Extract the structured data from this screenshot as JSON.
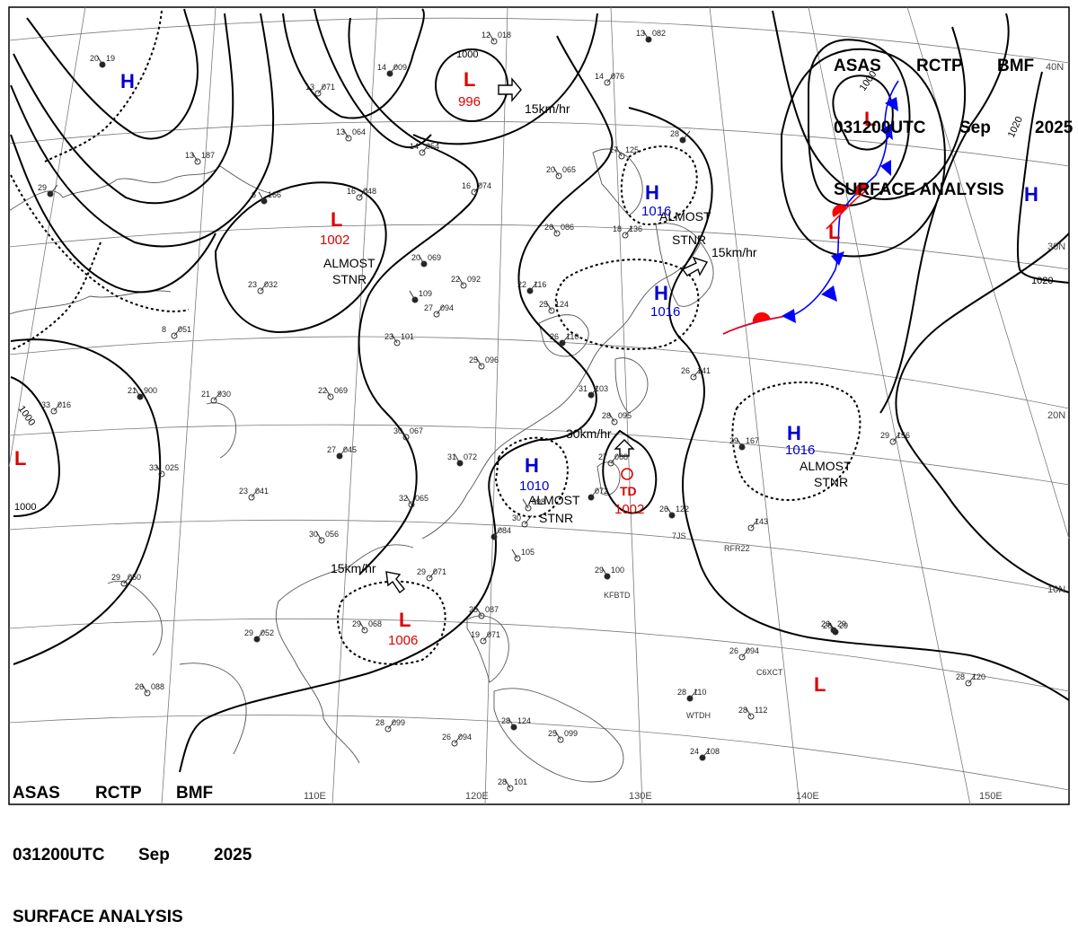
{
  "header": {
    "agency_line": [
      "ASAS",
      "RCTP",
      "BMF"
    ],
    "time_line": [
      "031200UTC",
      "Sep",
      "2025"
    ],
    "title": "SURFACE ANALYSIS"
  },
  "colors": {
    "high": "#0000cc",
    "low": "#dd0000",
    "isobar": "#000000",
    "graticule": "#7a7a7a",
    "coast": "#555555",
    "cold_front": "#0000ff",
    "warm_front": "#ff0000"
  },
  "lon_labels": [
    "110E",
    "120E",
    "130E",
    "140E",
    "150E"
  ],
  "lat_labels": [
    "40N",
    "30N",
    "20N",
    "10N"
  ],
  "pressure_systems": [
    {
      "type": "L",
      "value": "996"
    },
    {
      "type": "L",
      "value": "1002",
      "note_1": "ALMOST",
      "note_2": "STNR"
    },
    {
      "type": "H",
      "value": "1016",
      "note_1": "ALMOST",
      "note_2": "STNR"
    },
    {
      "type": "H",
      "value": "1016",
      "motion": "15km/hr"
    },
    {
      "type": "H",
      "value": "1016",
      "note_1": "ALMOST",
      "note_2": "STNR"
    },
    {
      "type": "H",
      "value": "1010",
      "note_1": "ALMOST",
      "note_2": "STNR"
    },
    {
      "type": "TD",
      "value": "1002",
      "motion": "30km/hr"
    },
    {
      "type": "L",
      "value": "1006",
      "motion": "15km/hr"
    },
    {
      "type": "L",
      "value": ""
    },
    {
      "type": "L",
      "value": ""
    },
    {
      "type": "L",
      "value": ""
    },
    {
      "type": "H",
      "value": ""
    },
    {
      "type": "H",
      "value": ""
    }
  ],
  "motion_labels": {
    "north_low": "15km/hr",
    "td": "30km/hr",
    "high_east": "15km/hr",
    "south_low": "15km/hr"
  },
  "isobar_labels": {
    "a": "1000",
    "b": "1000",
    "c": "1000",
    "d": "1000",
    "e": "1020",
    "f": "1020"
  },
  "stations": [
    {
      "t": "20",
      "p": "19"
    },
    {
      "t": "13",
      "p": "071"
    },
    {
      "t": "13",
      "p": "064"
    },
    {
      "t": "14",
      "p": "009"
    },
    {
      "t": "12",
      "p": "018"
    },
    {
      "t": "14",
      "p": "054"
    },
    {
      "t": "13",
      "p": "082"
    },
    {
      "t": "14",
      "p": "076"
    },
    {
      "t": "17",
      "p": "125"
    },
    {
      "t": "28",
      "p": ""
    },
    {
      "t": "20",
      "p": "065"
    },
    {
      "t": "16",
      "p": "074"
    },
    {
      "t": "6",
      "p": "166"
    },
    {
      "t": "16",
      "p": "048"
    },
    {
      "t": "13",
      "p": "187"
    },
    {
      "t": "29",
      "p": ""
    },
    {
      "t": "26",
      "p": "086"
    },
    {
      "t": "18",
      "p": "136"
    },
    {
      "t": "20",
      "p": "069"
    },
    {
      "t": "23",
      "p": "032"
    },
    {
      "t": "22",
      "p": "092"
    },
    {
      "t": "22",
      "p": "116"
    },
    {
      "t": "25",
      "p": "124"
    },
    {
      "t": "27",
      "p": "094"
    },
    {
      "t": "",
      "p": "109"
    },
    {
      "t": "8",
      "p": "051"
    },
    {
      "t": "23",
      "p": "101"
    },
    {
      "t": "26",
      "p": "110"
    },
    {
      "t": "25",
      "p": "096"
    },
    {
      "t": "33",
      "p": "016"
    },
    {
      "t": "21",
      "p": "900"
    },
    {
      "t": "21",
      "p": "930"
    },
    {
      "t": "22",
      "p": "069"
    },
    {
      "t": "31",
      "p": "103"
    },
    {
      "t": "28",
      "p": "095"
    },
    {
      "t": "26",
      "p": "141"
    },
    {
      "t": "29",
      "p": "167"
    },
    {
      "t": "29",
      "p": "156"
    },
    {
      "t": "30",
      "p": "067"
    },
    {
      "t": "27",
      "p": "045"
    },
    {
      "t": "33",
      "p": "025"
    },
    {
      "t": "23",
      "p": "041"
    },
    {
      "t": "31",
      "p": "072"
    },
    {
      "t": "27",
      "p": "068"
    },
    {
      "t": "32",
      "p": "065"
    },
    {
      "t": "",
      "p": "072"
    },
    {
      "t": "",
      "p": "098"
    },
    {
      "t": "30",
      "p": ""
    },
    {
      "t": "26",
      "p": "122"
    },
    {
      "t": "",
      "p": "143"
    },
    {
      "t": "30",
      "p": "056"
    },
    {
      "t": "",
      "p": "084"
    },
    {
      "t": "",
      "p": "105"
    },
    {
      "t": "29",
      "p": "071"
    },
    {
      "t": "29",
      "p": "100"
    },
    {
      "t": "29",
      "p": "050"
    },
    {
      "t": "29",
      "p": "068"
    },
    {
      "t": "29",
      "p": "052"
    },
    {
      "t": "25",
      "p": "087"
    },
    {
      "t": "19",
      "p": "071"
    },
    {
      "t": "26",
      "p": "29"
    },
    {
      "t": "26",
      "p": "094"
    },
    {
      "t": "26",
      "p": "088"
    },
    {
      "t": "28",
      "p": "110"
    },
    {
      "t": "28",
      "p": "112"
    },
    {
      "t": "28",
      "p": "099"
    },
    {
      "t": "28",
      "p": "124"
    },
    {
      "t": "26",
      "p": "094"
    },
    {
      "t": "25",
      "p": "099"
    },
    {
      "t": "24",
      "p": "108"
    },
    {
      "t": "28",
      "p": "101"
    },
    {
      "t": "28",
      "p": "120"
    },
    {
      "t": "26",
      "p": "29"
    }
  ],
  "ship_ids": [
    "7JS",
    "RFR22",
    "KFBTD",
    "C6XCT",
    "WTDH"
  ]
}
